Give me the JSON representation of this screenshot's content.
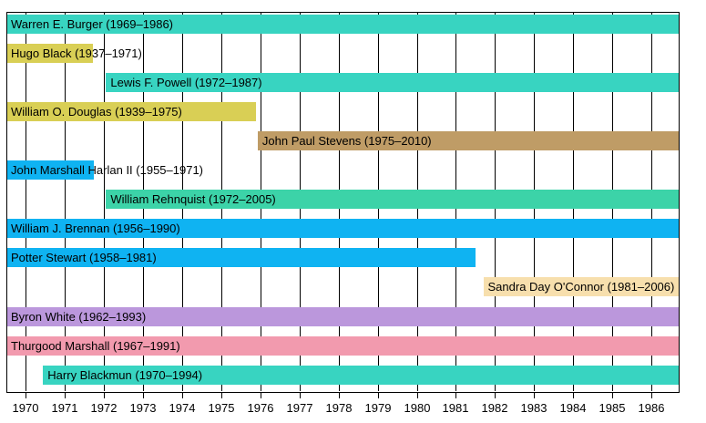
{
  "chart_data": {
    "type": "bar",
    "subtype": "gantt-timeline",
    "title": "",
    "xlabel": "",
    "ylabel": "",
    "x_axis": {
      "domain": [
        1969.5,
        1986.7
      ],
      "tick_values": [
        1970,
        1971,
        1972,
        1973,
        1974,
        1975,
        1976,
        1977,
        1978,
        1979,
        1980,
        1981,
        1982,
        1983,
        1984,
        1985,
        1986
      ],
      "tick_labels": [
        "1970",
        "1971",
        "1972",
        "1973",
        "1974",
        "1975",
        "1976",
        "1977",
        "1978",
        "1979",
        "1980",
        "1981",
        "1982",
        "1983",
        "1984",
        "1985",
        "1986"
      ]
    },
    "layout": {
      "grid": true,
      "legend": false,
      "background": "#ffffff",
      "frame_color": "#000000",
      "gridline_color": "#000000",
      "label_color": "#000000"
    },
    "bars": [
      {
        "label": "Warren E. Burger (1969–1986)",
        "start": 1969.5,
        "end": 1986.7,
        "color": "#38d4c1"
      },
      {
        "label": "Hugo Black (1937–1971)",
        "start": 1969.5,
        "end": 1971.72,
        "color": "#d9cf55"
      },
      {
        "label": "Lewis F. Powell (1972–1987)",
        "start": 1972.05,
        "end": 1986.7,
        "color": "#38d4c1"
      },
      {
        "label": "William O. Douglas (1939–1975)",
        "start": 1969.5,
        "end": 1975.88,
        "color": "#d9cf55"
      },
      {
        "label": "John Paul Stevens (1975–2010)",
        "start": 1975.93,
        "end": 1986.7,
        "color": "#bf9c66"
      },
      {
        "label": "John Marshall Harlan II (1955–1971)",
        "start": 1969.5,
        "end": 1971.74,
        "color": "#0fb3f2"
      },
      {
        "label": "William Rehnquist (1972–2005)",
        "start": 1972.05,
        "end": 1986.7,
        "color": "#3cd3a8"
      },
      {
        "label": "William J. Brennan (1956–1990)",
        "start": 1969.5,
        "end": 1986.7,
        "color": "#0fb3f2"
      },
      {
        "label": "Potter Stewart (1958–1981)",
        "start": 1969.5,
        "end": 1981.51,
        "color": "#0fb3f2"
      },
      {
        "label": "Sandra Day O'Connor (1981–2006)",
        "start": 1981.7,
        "end": 1986.7,
        "color": "#f7dfad"
      },
      {
        "label": "Byron White (1962–1993)",
        "start": 1969.5,
        "end": 1986.7,
        "color": "#bb97dc"
      },
      {
        "label": "Thurgood Marshall (1967–1991)",
        "start": 1969.5,
        "end": 1986.7,
        "color": "#f29aae"
      },
      {
        "label": "Harry Blackmun (1970–1994)",
        "start": 1970.44,
        "end": 1986.7,
        "color": "#38d4c1"
      }
    ]
  }
}
